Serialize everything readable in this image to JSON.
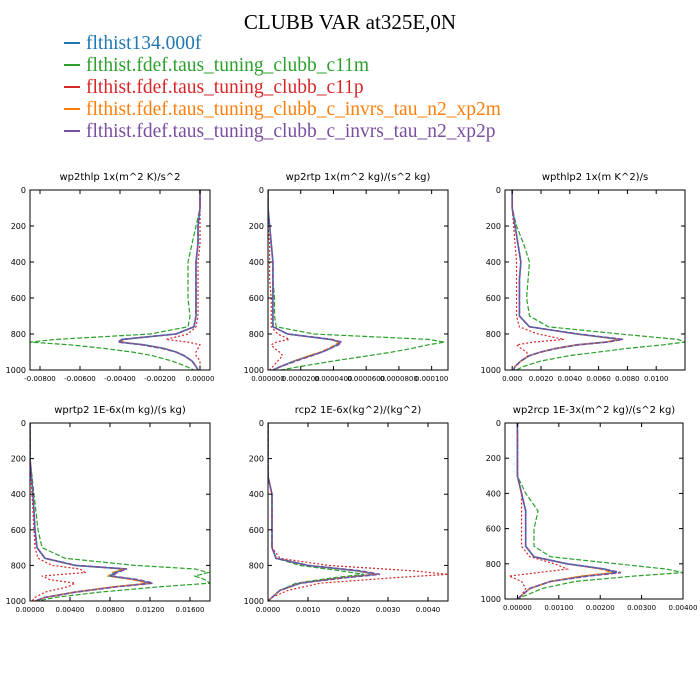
{
  "title": "CLUBB VAR at325E,0N",
  "legend": [
    {
      "label": "flthist134.000f",
      "color": "#1f77b4",
      "dash": "solid"
    },
    {
      "label": "flthist.fdef.taus_tuning_clubb_c11m",
      "color": "#2ca02c",
      "dash": "dashed"
    },
    {
      "label": "flthist.fdef.taus_tuning_clubb_c11p",
      "color": "#d62728",
      "dash": "dotted"
    },
    {
      "label": "flthist.fdef.taus_tuning_clubb_c_invrs_tau_n2_xp2m",
      "color": "#ff7f0e",
      "dash": "dashed"
    },
    {
      "label": "flthist.fdef.taus_tuning_clubb_c_invrs_tau_n2_xp2p",
      "color": "#7b4fa0",
      "dash": "dashed"
    }
  ],
  "chart_data": [
    {
      "type": "line",
      "title": "wp2thlp  1x(m^2 K)/s^2",
      "ylim": [
        1000,
        0
      ],
      "yticks": [
        0,
        200,
        400,
        600,
        800,
        1000
      ],
      "xlim": [
        -0.0085,
        0.0005
      ],
      "xticks": [
        -0.008,
        -0.006,
        -0.004,
        -0.002,
        0.0
      ],
      "xtick_labels": [
        "-0.00800",
        "-0.00600",
        "-0.00400",
        "-0.00200",
        "0.00000"
      ],
      "y": [
        0,
        100,
        200,
        300,
        400,
        500,
        600,
        700,
        760,
        800,
        830,
        845,
        860,
        880,
        900,
        920,
        950,
        980,
        1000
      ],
      "series": [
        {
          "values": [
            0,
            0,
            -0.0001,
            -0.0001,
            -0.0002,
            -0.0002,
            -0.0002,
            -0.0002,
            -0.0003,
            -0.0012,
            -0.0039,
            -0.004,
            -0.0028,
            -0.0018,
            -0.0012,
            -0.0008,
            -0.0004,
            -0.0002,
            -0.0001
          ]
        },
        {
          "values": [
            0,
            0,
            -0.0002,
            -0.0004,
            -0.0006,
            -0.0006,
            -0.0006,
            -0.0005,
            -0.0006,
            -0.0025,
            -0.0072,
            -0.0085,
            -0.0065,
            -0.0048,
            -0.0034,
            -0.0024,
            -0.0014,
            -0.0007,
            -0.0003
          ]
        },
        {
          "values": [
            0,
            0,
            0,
            0,
            -0.0001,
            -0.0001,
            -0.0001,
            -0.0001,
            -0.0002,
            -0.0006,
            -0.0017,
            -0.0006,
            0.0,
            -0.0001,
            -0.0002,
            -0.0002,
            0.0,
            0.0,
            0.0
          ]
        },
        {
          "values": [
            0,
            0,
            -0.0001,
            -0.0001,
            -0.0002,
            -0.0002,
            -0.0002,
            -0.0002,
            -0.0003,
            -0.0012,
            -0.0038,
            -0.0039,
            -0.0028,
            -0.0018,
            -0.0012,
            -0.0008,
            -0.0004,
            -0.0002,
            -0.0001
          ]
        },
        {
          "values": [
            0,
            0,
            -0.0001,
            -0.0001,
            -0.0002,
            -0.0002,
            -0.0002,
            -0.0002,
            -0.0003,
            -0.0012,
            -0.0039,
            -0.0041,
            -0.0029,
            -0.0019,
            -0.0012,
            -0.0008,
            -0.0004,
            -0.0002,
            -0.0001
          ]
        }
      ]
    },
    {
      "type": "line",
      "title": "wp2rtp  1x(m^2 kg)/(s^2 kg)",
      "ylim": [
        1000,
        0
      ],
      "yticks": [
        0,
        200,
        400,
        600,
        800,
        1000
      ],
      "xlim": [
        0,
        0.00011
      ],
      "xticks": [
        0,
        2e-05,
        4e-05,
        6e-05,
        8e-05,
        0.0001
      ],
      "xtick_labels": [
        "0.000000",
        "0.0000200",
        "0.0000400",
        "0.0000600",
        "0.0000800",
        "0.000100"
      ],
      "y": [
        0,
        100,
        200,
        300,
        400,
        500,
        600,
        700,
        760,
        800,
        830,
        845,
        860,
        880,
        900,
        920,
        950,
        980,
        1000
      ],
      "series": [
        {
          "values": [
            0,
            0,
            1e-06,
            2e-06,
            3e-06,
            3e-06,
            3e-06,
            3e-06,
            3e-06,
            1.2e-05,
            3.8e-05,
            4.4e-05,
            4.2e-05,
            3.8e-05,
            3.3e-05,
            2.6e-05,
            1.6e-05,
            8e-06,
            3e-06
          ]
        },
        {
          "values": [
            0,
            0,
            1e-06,
            2e-06,
            3e-06,
            3e-06,
            4e-06,
            4e-06,
            5e-06,
            2.8e-05,
            9.8e-05,
            0.000108,
            9.8e-05,
            8.8e-05,
            7.6e-05,
            6.2e-05,
            4e-05,
            2e-05,
            8e-06
          ]
        },
        {
          "values": [
            0,
            0,
            0,
            1e-06,
            1e-06,
            1e-06,
            2e-06,
            2e-06,
            2e-06,
            6e-06,
            1.3e-05,
            5e-06,
            2e-06,
            4e-06,
            7e-06,
            9e-06,
            6e-06,
            3e-06,
            1e-06
          ]
        },
        {
          "values": [
            0,
            0,
            1e-06,
            2e-06,
            3e-06,
            3e-06,
            3e-06,
            3e-06,
            3e-06,
            1.2e-05,
            3.8e-05,
            4.3e-05,
            4.1e-05,
            3.7e-05,
            3.2e-05,
            2.5e-05,
            1.6e-05,
            8e-06,
            3e-06
          ]
        },
        {
          "values": [
            0,
            0,
            1e-06,
            2e-06,
            3e-06,
            3e-06,
            3e-06,
            3e-06,
            3e-06,
            1.2e-05,
            3.9e-05,
            4.5e-05,
            4.3e-05,
            3.8e-05,
            3.3e-05,
            2.7e-05,
            1.7e-05,
            8e-06,
            3e-06
          ]
        }
      ]
    },
    {
      "type": "line",
      "title": "wpthlp2  1x(m K^2)/s",
      "ylim": [
        1000,
        0
      ],
      "yticks": [
        0,
        200,
        400,
        600,
        800,
        1000
      ],
      "xlim": [
        -0.0005,
        0.012
      ],
      "xticks": [
        0,
        0.002,
        0.004,
        0.006,
        0.008,
        0.01
      ],
      "xtick_labels": [
        "0.000",
        "0.0020",
        "0.0040",
        "0.0060",
        "0.0080",
        "0.0100"
      ],
      "y": [
        0,
        100,
        200,
        300,
        400,
        500,
        600,
        700,
        760,
        800,
        830,
        845,
        860,
        880,
        900,
        920,
        950,
        980,
        1000
      ],
      "series": [
        {
          "values": [
            0,
            0,
            0.0002,
            0.0004,
            0.0006,
            0.0005,
            0.0005,
            0.0005,
            0.0012,
            0.0045,
            0.0075,
            0.0065,
            0.0045,
            0.003,
            0.002,
            0.0012,
            0.0006,
            0.0002,
            0.0001
          ]
        },
        {
          "values": [
            0,
            0,
            0.0003,
            0.0008,
            0.0012,
            0.0011,
            0.001,
            0.0012,
            0.0025,
            0.0075,
            0.0115,
            0.012,
            0.0105,
            0.008,
            0.006,
            0.004,
            0.002,
            0.0008,
            0.0003
          ]
        },
        {
          "values": [
            0,
            0,
            0.0001,
            0.0002,
            0.0003,
            0.0003,
            0.0003,
            0.0003,
            0.0005,
            0.0018,
            0.0036,
            0.0015,
            0.0003,
            0.0006,
            0.001,
            0.0011,
            0.0006,
            0.0002,
            0.0001
          ]
        },
        {
          "values": [
            0,
            0,
            0.0002,
            0.0004,
            0.0006,
            0.0005,
            0.0005,
            0.0005,
            0.0012,
            0.0044,
            0.0074,
            0.0064,
            0.0044,
            0.003,
            0.002,
            0.0012,
            0.0006,
            0.0002,
            0.0001
          ]
        },
        {
          "values": [
            0,
            0,
            0.0002,
            0.0004,
            0.0006,
            0.0005,
            0.0005,
            0.0005,
            0.0012,
            0.0046,
            0.0077,
            0.0066,
            0.0046,
            0.0031,
            0.002,
            0.0012,
            0.0006,
            0.0002,
            0.0001
          ]
        }
      ]
    },
    {
      "type": "line",
      "title": "wprtp2  1E-6x(m kg)/(s kg)",
      "ylim": [
        1000,
        0
      ],
      "yticks": [
        0,
        200,
        400,
        600,
        800,
        1000
      ],
      "xlim": [
        0,
        0.018
      ],
      "xticks": [
        0,
        0.004,
        0.008,
        0.012,
        0.016
      ],
      "xtick_labels": [
        "0.00000",
        "0.00400",
        "0.00800",
        "0.01200",
        "0.01600"
      ],
      "y": [
        0,
        200,
        400,
        600,
        700,
        760,
        800,
        820,
        840,
        860,
        880,
        900,
        920,
        950,
        980,
        1000
      ],
      "series": [
        {
          "values": [
            0,
            0,
            0.0003,
            0.0005,
            0.0007,
            0.0015,
            0.0045,
            0.0095,
            0.0085,
            0.008,
            0.0105,
            0.012,
            0.0085,
            0.0045,
            0.0015,
            0.0005
          ]
        },
        {
          "values": [
            0,
            0,
            0.0004,
            0.0008,
            0.0012,
            0.0035,
            0.0105,
            0.0165,
            0.0178,
            0.0165,
            0.0175,
            0.018,
            0.013,
            0.007,
            0.0025,
            0.0008
          ]
        },
        {
          "values": [
            0,
            0,
            0.0002,
            0.0004,
            0.0005,
            0.0008,
            0.0022,
            0.005,
            0.0055,
            0.0012,
            0.002,
            0.0045,
            0.0038,
            0.0015,
            0.0005,
            0.0002
          ]
        },
        {
          "values": [
            0,
            0,
            0.0003,
            0.0005,
            0.0007,
            0.0015,
            0.0044,
            0.0093,
            0.0082,
            0.0078,
            0.0102,
            0.0118,
            0.0083,
            0.0044,
            0.0015,
            0.0005
          ]
        },
        {
          "values": [
            0,
            0,
            0.0003,
            0.0005,
            0.0007,
            0.0015,
            0.0046,
            0.0097,
            0.0087,
            0.0082,
            0.0108,
            0.0123,
            0.0087,
            0.0046,
            0.0015,
            0.0005
          ]
        }
      ]
    },
    {
      "type": "line",
      "title": "rcp2  1E-6x(kg^2)/(kg^2)",
      "ylim": [
        1000,
        0
      ],
      "yticks": [
        0,
        200,
        400,
        600,
        800,
        1000
      ],
      "xlim": [
        0,
        0.0045
      ],
      "xticks": [
        0,
        0.001,
        0.002,
        0.003,
        0.004
      ],
      "xtick_labels": [
        "0.0000",
        "0.0010",
        "0.0020",
        "0.0030",
        "0.0040"
      ],
      "y": [
        0,
        300,
        400,
        500,
        600,
        700,
        760,
        800,
        830,
        850,
        870,
        900,
        940,
        980,
        1000
      ],
      "series": [
        {
          "values": [
            0,
            0,
            0.0001,
            0.0001,
            0.0001,
            0.0001,
            0.0002,
            0.001,
            0.0022,
            0.0027,
            0.0018,
            0.0008,
            0.0003,
            0.0001,
            0
          ]
        },
        {
          "values": [
            0,
            0,
            0.0001,
            0.0001,
            0.0001,
            0.0001,
            0.0002,
            0.0008,
            0.0018,
            0.0024,
            0.0016,
            0.0007,
            0.0003,
            0.0001,
            0
          ]
        },
        {
          "values": [
            0,
            0,
            0.0001,
            0.0001,
            0.0001,
            0.0001,
            0.0003,
            0.0015,
            0.0036,
            0.0045,
            0.0031,
            0.0013,
            0.0005,
            0.0001,
            0
          ]
        },
        {
          "values": [
            0,
            0,
            0.0001,
            0.0001,
            0.0001,
            0.0001,
            0.0002,
            0.001,
            0.0022,
            0.0027,
            0.0018,
            0.0008,
            0.0003,
            0.0001,
            0
          ]
        },
        {
          "values": [
            0,
            0,
            0.0001,
            0.0001,
            0.0001,
            0.0001,
            0.0002,
            0.001,
            0.0023,
            0.0028,
            0.0019,
            0.0008,
            0.0003,
            0.0001,
            0
          ]
        }
      ]
    },
    {
      "type": "line",
      "title": "wp2rcp  1E-3x(m^2 kg)/(s^2 kg)",
      "ylim": [
        1000,
        0
      ],
      "yticks": [
        0,
        200,
        400,
        600,
        800,
        1000
      ],
      "xlim": [
        -0.0003,
        0.004
      ],
      "xticks": [
        0,
        0.001,
        0.002,
        0.003,
        0.004
      ],
      "xtick_labels": [
        "0.00000",
        "0.00100",
        "0.00200",
        "0.00300",
        "0.00400"
      ],
      "y": [
        0,
        300,
        400,
        500,
        600,
        700,
        760,
        800,
        830,
        850,
        870,
        900,
        940,
        980,
        1000
      ],
      "series": [
        {
          "values": [
            0,
            0,
            0.0001,
            0.0002,
            0.0002,
            0.0002,
            0.0004,
            0.0012,
            0.0021,
            0.0024,
            0.0016,
            0.0008,
            0.0003,
            0.0001,
            0
          ]
        },
        {
          "values": [
            0,
            0,
            0.0002,
            0.0005,
            0.0004,
            0.0004,
            0.0008,
            0.0024,
            0.0036,
            0.004,
            0.0028,
            0.0014,
            0.0006,
            0.0002,
            0
          ]
        },
        {
          "values": [
            0,
            0,
            0.0001,
            0.0001,
            0.0001,
            0.0001,
            0.0003,
            0.0009,
            0.0012,
            0.0005,
            -0.0002,
            0.0001,
            0.0002,
            0.0001,
            0
          ]
        },
        {
          "values": [
            0,
            0,
            0.0001,
            0.0002,
            0.0002,
            0.0002,
            0.0004,
            0.0012,
            0.002,
            0.0023,
            0.0015,
            0.0008,
            0.0003,
            0.0001,
            0
          ]
        },
        {
          "values": [
            0,
            0,
            0.0001,
            0.0002,
            0.0002,
            0.0002,
            0.0004,
            0.0012,
            0.0021,
            0.0025,
            0.0017,
            0.0008,
            0.0003,
            0.0001,
            0
          ]
        }
      ]
    }
  ]
}
